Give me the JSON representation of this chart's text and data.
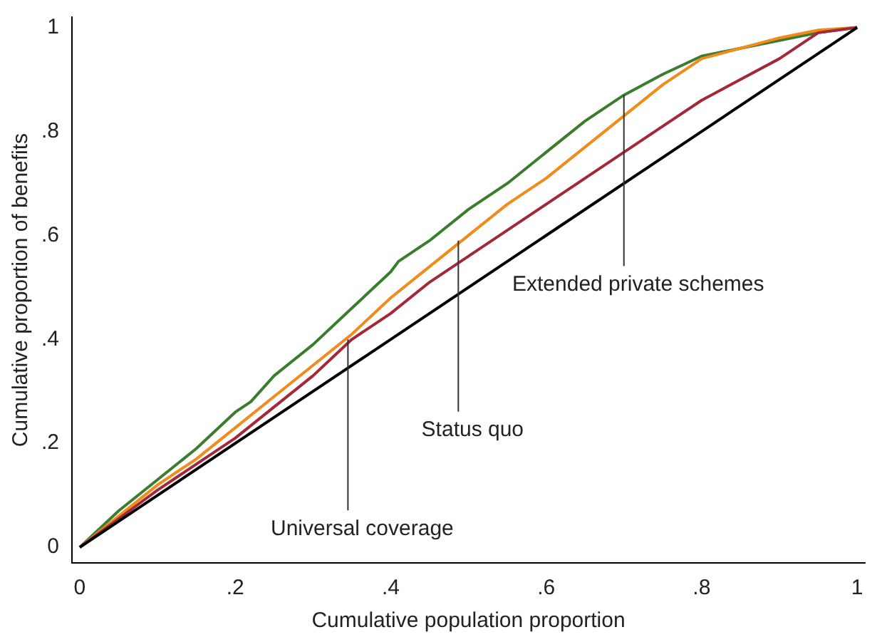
{
  "chart_data": {
    "type": "line",
    "xlabel": "Cumulative population proportion",
    "ylabel": "Cumulative proportion of benefits",
    "xlim": [
      -0.01,
      1.01
    ],
    "ylim": [
      -0.03,
      1.02
    ],
    "xticks": [
      {
        "value": 0,
        "label": "0"
      },
      {
        "value": 0.2,
        "label": ".2"
      },
      {
        "value": 0.4,
        "label": ".4"
      },
      {
        "value": 0.6,
        "label": ".6"
      },
      {
        "value": 0.8,
        "label": ".8"
      },
      {
        "value": 1,
        "label": "1"
      }
    ],
    "yticks": [
      {
        "value": 0,
        "label": "0"
      },
      {
        "value": 0.2,
        "label": ".2"
      },
      {
        "value": 0.4,
        "label": ".4"
      },
      {
        "value": 0.6,
        "label": ".6"
      },
      {
        "value": 0.8,
        "label": ".8"
      },
      {
        "value": 1,
        "label": "1"
      }
    ],
    "grid": false,
    "legend": false,
    "marker": "none",
    "line_style": "solid",
    "series": [
      {
        "color": "#000000",
        "x": [
          0,
          1
        ],
        "values": [
          0,
          1
        ]
      },
      {
        "color": "#a3283a",
        "x": [
          0,
          0.05,
          0.1,
          0.15,
          0.2,
          0.25,
          0.3,
          0.35,
          0.4,
          0.45,
          0.5,
          0.55,
          0.6,
          0.65,
          0.7,
          0.75,
          0.8,
          0.85,
          0.9,
          0.95,
          1
        ],
        "values": [
          0,
          0.055,
          0.11,
          0.16,
          0.21,
          0.27,
          0.33,
          0.4,
          0.45,
          0.51,
          0.56,
          0.61,
          0.66,
          0.71,
          0.76,
          0.81,
          0.86,
          0.9,
          0.94,
          0.99,
          1
        ]
      },
      {
        "color": "#f28a1c",
        "x": [
          0,
          0.05,
          0.1,
          0.15,
          0.2,
          0.25,
          0.3,
          0.35,
          0.4,
          0.45,
          0.5,
          0.55,
          0.6,
          0.65,
          0.7,
          0.75,
          0.8,
          0.85,
          0.9,
          0.95,
          1
        ],
        "values": [
          0,
          0.06,
          0.12,
          0.17,
          0.23,
          0.29,
          0.35,
          0.41,
          0.48,
          0.54,
          0.6,
          0.66,
          0.71,
          0.77,
          0.83,
          0.89,
          0.94,
          0.96,
          0.98,
          0.995,
          1
        ]
      },
      {
        "color": "#3a7d2c",
        "x": [
          0,
          0.05,
          0.1,
          0.15,
          0.2,
          0.22,
          0.25,
          0.3,
          0.35,
          0.4,
          0.41,
          0.45,
          0.5,
          0.55,
          0.6,
          0.65,
          0.7,
          0.75,
          0.8,
          0.85,
          0.9,
          0.95,
          1
        ],
        "values": [
          0,
          0.07,
          0.13,
          0.19,
          0.26,
          0.28,
          0.33,
          0.39,
          0.46,
          0.53,
          0.55,
          0.59,
          0.65,
          0.7,
          0.76,
          0.82,
          0.87,
          0.91,
          0.945,
          0.96,
          0.975,
          0.99,
          1
        ]
      }
    ],
    "annotations": [
      {
        "text": "Extended private schemes",
        "x": 0.7,
        "y": 0.87
      },
      {
        "text": "Status quo",
        "x": 0.487,
        "y": 0.59
      },
      {
        "text": "Universal coverage",
        "x": 0.345,
        "y": 0.4
      }
    ]
  }
}
